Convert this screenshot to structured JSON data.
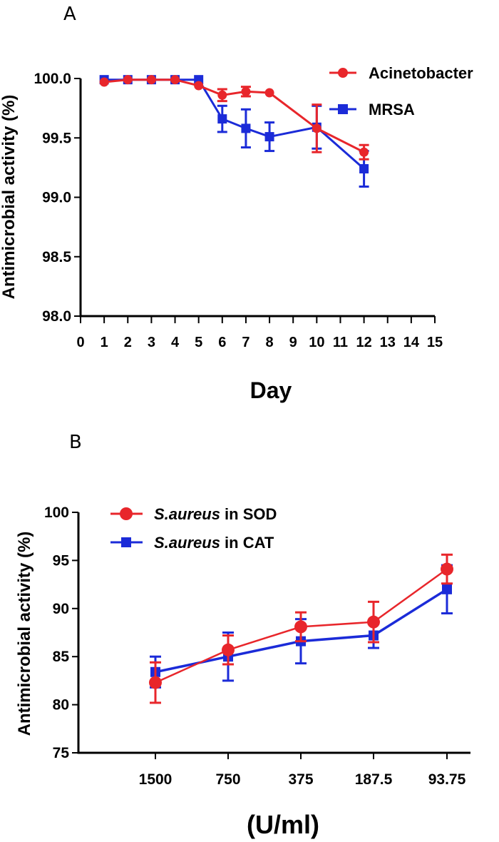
{
  "chart_data": [
    {
      "panel": "A",
      "type": "line",
      "title": "",
      "xlabel": "Day",
      "ylabel": "Antimicrobial activity (%)",
      "xlim": [
        0,
        15
      ],
      "ylim": [
        98.0,
        100.0
      ],
      "xticks": [
        "0",
        "1",
        "2",
        "3",
        "4",
        "5",
        "6",
        "7",
        "8",
        "9",
        "10",
        "11",
        "12",
        "13",
        "14",
        "15"
      ],
      "yticks": [
        "98.0",
        "98.5",
        "99.0",
        "99.5",
        "100.0"
      ],
      "legend_position": "top-right",
      "series": [
        {
          "name": "Acinetobacter",
          "color": "#e8262b",
          "marker": "circle",
          "x": [
            1,
            2,
            3,
            4,
            5,
            6,
            7,
            8,
            10,
            12
          ],
          "values": [
            99.97,
            99.99,
            99.99,
            99.99,
            99.94,
            99.86,
            99.89,
            99.88,
            99.58,
            99.38
          ],
          "errors": [
            0.01,
            0.01,
            0.01,
            0.01,
            0.01,
            0.05,
            0.04,
            0.01,
            0.2,
            0.06
          ]
        },
        {
          "name": "MRSA",
          "color": "#1b2bd8",
          "marker": "square",
          "x": [
            1,
            2,
            3,
            4,
            5,
            6,
            7,
            8,
            10,
            12
          ],
          "values": [
            99.99,
            99.99,
            99.99,
            99.99,
            99.99,
            99.66,
            99.58,
            99.51,
            99.59,
            99.24
          ],
          "errors": [
            0.01,
            0.01,
            0.01,
            0.01,
            0.01,
            0.11,
            0.16,
            0.12,
            0.18,
            0.15
          ]
        }
      ]
    },
    {
      "panel": "B",
      "type": "line",
      "title": "",
      "xlabel": "(U/ml)",
      "ylabel": "Antimicrobial activity (%)",
      "categories": [
        "1500",
        "750",
        "375",
        "187.5",
        "93.75"
      ],
      "ylim": [
        75,
        100
      ],
      "yticks": [
        "75",
        "80",
        "85",
        "90",
        "95",
        "100"
      ],
      "legend_position": "top-left",
      "series": [
        {
          "name_italic": "S.aureus",
          "name_rest": " in SOD",
          "color": "#e8262b",
          "marker": "circle",
          "values": [
            82.3,
            85.7,
            88.1,
            88.6,
            94.1
          ],
          "errors": [
            2.1,
            1.5,
            1.5,
            2.1,
            1.5
          ]
        },
        {
          "name_italic": "S.aureus",
          "name_rest": " in CAT",
          "color": "#1b2bd8",
          "marker": "square",
          "values": [
            83.4,
            85.0,
            86.6,
            87.2,
            92.0
          ],
          "errors": [
            1.6,
            2.5,
            2.3,
            1.3,
            2.5
          ]
        }
      ]
    }
  ]
}
